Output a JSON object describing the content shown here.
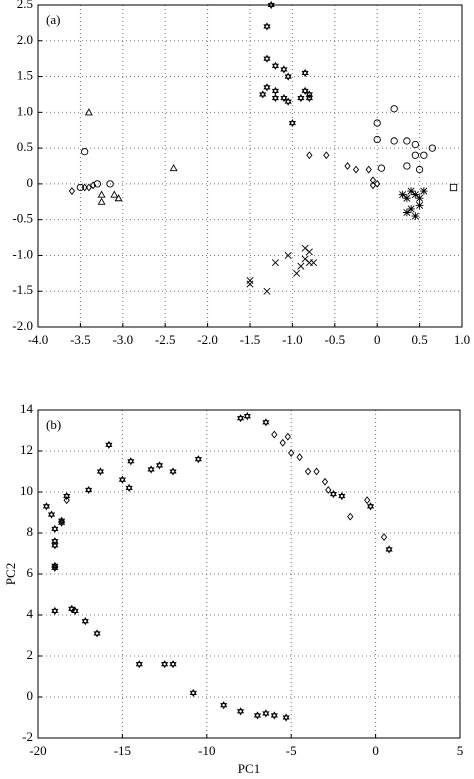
{
  "chart_data": [
    {
      "type": "scatter",
      "label": "(a)",
      "grid": true,
      "xlim": [
        -4,
        1
      ],
      "ylim": [
        -2,
        2.5
      ],
      "xticks": [
        {
          "value": -4,
          "label": "-4.0"
        },
        {
          "value": -3.5,
          "label": "-3.5"
        },
        {
          "value": -3,
          "label": "-3.0"
        },
        {
          "value": -2.5,
          "label": "-2.5"
        },
        {
          "value": -2,
          "label": "-2.0"
        },
        {
          "value": -1.5,
          "label": "-1.5"
        },
        {
          "value": -1,
          "label": "-1.0"
        },
        {
          "value": -0.5,
          "label": "-0.5"
        },
        0,
        0.5,
        {
          "value": 1,
          "label": "1.0"
        }
      ],
      "yticks": [
        {
          "value": -2,
          "label": "-2.0"
        },
        {
          "value": -1.5,
          "label": "-1.5"
        },
        {
          "value": -1,
          "label": "-1.0"
        },
        {
          "value": -0.5,
          "label": "-0.5"
        },
        0,
        0.5,
        {
          "value": 1,
          "label": "1.0"
        },
        {
          "value": 1.5,
          "label": "1.5"
        },
        {
          "value": 2,
          "label": "2.0"
        },
        {
          "value": 2.5,
          "label": "2.5"
        }
      ],
      "series": [
        {
          "marker": "triangle",
          "color": "#000",
          "x": [
            -3.4,
            -3.25,
            -3.25,
            -3.1,
            -3.05,
            -2.4
          ],
          "values": [
            1.0,
            -0.15,
            -0.25,
            -0.15,
            -0.2,
            0.22
          ]
        },
        {
          "marker": "circle",
          "color": "#000",
          "x": [
            -3.45,
            -3.5,
            -3.3,
            -3.15,
            0.0,
            0.0,
            0.05,
            0.2,
            0.2,
            0.35,
            0.35,
            0.45,
            0.5,
            0.55,
            0.65,
            0.45
          ],
          "values": [
            0.45,
            -0.05,
            0.0,
            0.0,
            0.85,
            0.62,
            0.22,
            1.05,
            0.6,
            0.6,
            0.25,
            0.4,
            0.2,
            0.4,
            0.5,
            0.55
          ]
        },
        {
          "marker": "diamond",
          "color": "#000",
          "x": [
            -3.6,
            -3.45,
            -3.4,
            -3.35,
            -0.8,
            -0.6,
            -0.35,
            -0.25,
            -0.1,
            -0.05,
            0.0,
            -0.05
          ],
          "values": [
            -0.1,
            -0.05,
            -0.05,
            -0.02,
            0.4,
            0.4,
            0.25,
            0.2,
            0.2,
            0.05,
            0.0,
            -0.02
          ]
        },
        {
          "marker": "hexagram",
          "color": "#000",
          "x": [
            -1.25,
            -1.3,
            -1.3,
            -1.2,
            -1.1,
            -1.05,
            -0.85,
            -1.3,
            -1.2,
            -1.35,
            -1.2,
            -1.1,
            -1.05,
            -0.9,
            -0.85,
            -0.8,
            -0.8,
            -1.0
          ],
          "values": [
            2.5,
            2.2,
            1.75,
            1.65,
            1.6,
            1.5,
            1.55,
            1.35,
            1.3,
            1.25,
            1.2,
            1.2,
            1.15,
            1.2,
            1.3,
            1.25,
            1.2,
            0.85
          ]
        },
        {
          "marker": "star",
          "color": "#000",
          "x": [
            0.3,
            0.35,
            0.4,
            0.45,
            0.5,
            0.55,
            0.4,
            0.45,
            0.35,
            0.5
          ],
          "values": [
            -0.15,
            -0.2,
            -0.1,
            -0.15,
            -0.2,
            -0.1,
            -0.35,
            -0.45,
            -0.4,
            -0.3
          ]
        },
        {
          "marker": "square",
          "color": "#000",
          "x": [
            0.9
          ],
          "values": [
            -0.05
          ]
        },
        {
          "marker": "x",
          "color": "#000",
          "x": [
            -1.5,
            -1.5,
            -1.3,
            -1.2,
            -1.05,
            -0.95,
            -0.85,
            -0.8,
            -0.8,
            -0.75,
            -0.85,
            -0.9
          ],
          "values": [
            -1.35,
            -1.4,
            -1.5,
            -1.1,
            -1.0,
            -1.25,
            -1.05,
            -1.1,
            -0.95,
            -1.1,
            -0.9,
            -1.15
          ]
        }
      ]
    },
    {
      "type": "scatter",
      "label": "(b)",
      "grid": true,
      "xlabel": "PC1",
      "ylabel": "PC2",
      "xlim": [
        -20,
        5
      ],
      "ylim": [
        -2,
        14
      ],
      "xticks": [
        -20,
        -15,
        -10,
        -5,
        0,
        5
      ],
      "yticks": [
        -2,
        0,
        2,
        4,
        6,
        8,
        10,
        12,
        14
      ],
      "series": [
        {
          "marker": "hexagram",
          "color": "#000",
          "x": [
            -19.5,
            -19.2,
            -19,
            -19,
            -19,
            -19,
            -19,
            -19,
            -18.6,
            -18.6,
            -18.3,
            -18,
            -17.8,
            -17.2,
            -17,
            -16.5,
            -16.3,
            -15.8,
            -15,
            -14.6,
            -14.5,
            -14,
            -13.3,
            -12.8,
            -12.5,
            -12,
            -12,
            -10.8,
            -10.5,
            -9,
            -8,
            -7,
            -6.5,
            -6,
            -5.3,
            -8,
            -7.6,
            -6.5,
            -2.5,
            -2,
            -0.3,
            0.8
          ],
          "values": [
            9.3,
            8.9,
            8.2,
            7.6,
            7.4,
            6.4,
            6.3,
            4.2,
            8.6,
            8.5,
            9.8,
            4.3,
            4.2,
            3.7,
            10.1,
            3.1,
            11,
            12.3,
            10.6,
            10.2,
            11.5,
            1.6,
            11.1,
            11.3,
            1.6,
            1.6,
            11,
            0.2,
            11.6,
            -0.4,
            -0.7,
            -0.9,
            -0.8,
            -0.9,
            -1,
            13.6,
            13.7,
            13.4,
            9.9,
            9.8,
            9.3,
            7.2
          ]
        },
        {
          "marker": "diamond",
          "color": "#000",
          "x": [
            -18.3,
            -6,
            -5.5,
            -5.2,
            -5,
            -4.5,
            -4,
            -3.5,
            -3,
            -2.8,
            -1.5,
            -0.5,
            0.5
          ],
          "values": [
            9.6,
            12.8,
            12.4,
            12.7,
            11.9,
            11.7,
            11,
            11,
            10.5,
            10.1,
            8.8,
            9.6,
            7.8
          ]
        }
      ]
    }
  ]
}
